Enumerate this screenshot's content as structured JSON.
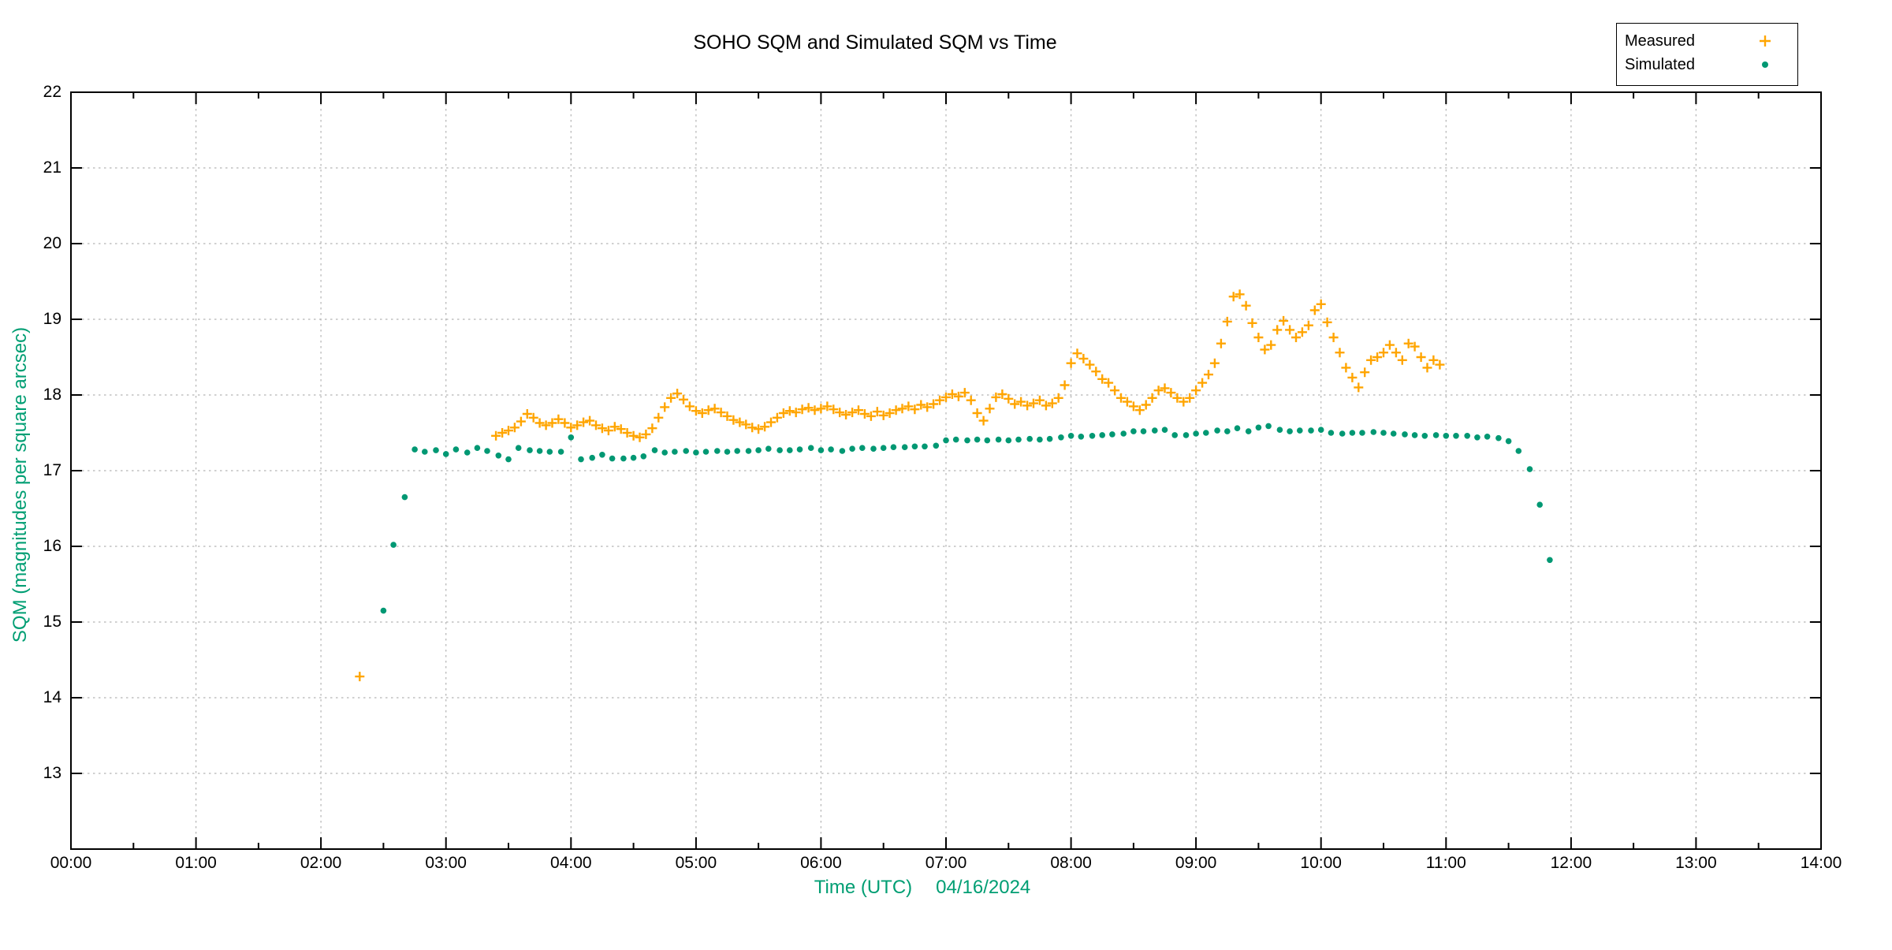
{
  "title": "SOHO SQM and Simulated SQM vs Time",
  "y_axis": {
    "label": "SQM (magnitudes per square arcsec)",
    "ticks": [
      {
        "v": 22,
        "label": "22"
      },
      {
        "v": 21,
        "label": "21"
      },
      {
        "v": 20,
        "label": "20"
      },
      {
        "v": 19,
        "label": "19"
      },
      {
        "v": 18,
        "label": "18"
      },
      {
        "v": 17,
        "label": "17"
      },
      {
        "v": 16,
        "label": "16"
      },
      {
        "v": 15,
        "label": "15"
      },
      {
        "v": 14,
        "label": "14"
      },
      {
        "v": 13,
        "label": "13"
      }
    ]
  },
  "x_axis": {
    "label": "Time (UTC)",
    "date": "04/16/2024",
    "ticks": [
      {
        "h": 0,
        "label": "00:00"
      },
      {
        "h": 1,
        "label": "01:00"
      },
      {
        "h": 2,
        "label": "02:00"
      },
      {
        "h": 3,
        "label": "03:00"
      },
      {
        "h": 4,
        "label": "04:00"
      },
      {
        "h": 5,
        "label": "05:00"
      },
      {
        "h": 6,
        "label": "06:00"
      },
      {
        "h": 7,
        "label": "07:00"
      },
      {
        "h": 8,
        "label": "08:00"
      },
      {
        "h": 9,
        "label": "09:00"
      },
      {
        "h": 10,
        "label": "10:00"
      },
      {
        "h": 11,
        "label": "11:00"
      },
      {
        "h": 12,
        "label": "12:00"
      },
      {
        "h": 13,
        "label": "13:00"
      },
      {
        "h": 14,
        "label": "14:00"
      }
    ]
  },
  "legend": {
    "items": [
      {
        "label": "Measured",
        "marker": "plus",
        "color": "#FFA500"
      },
      {
        "label": "Simulated",
        "marker": "dot",
        "color": "#009873"
      }
    ]
  },
  "colors": {
    "grid": "#b3b3b3",
    "axis_text": "#009E73",
    "border": "#000000",
    "measured": "#FFA500",
    "simulated": "#009873"
  },
  "chart_data": {
    "type": "scatter",
    "title": "SOHO SQM and Simulated SQM vs Time",
    "xlabel": "Time (UTC)  04/16/2024",
    "ylabel": "SQM (magnitudes per square arcsec)",
    "x_unit": "hours_UTC",
    "xlim": [
      0,
      14
    ],
    "ylim": [
      12,
      22
    ],
    "grid": true,
    "legend_position": "top-right",
    "series": [
      {
        "name": "Measured",
        "marker": "plus",
        "color": "#FFA500",
        "points": [
          [
            2.31,
            14.28
          ],
          [
            3.4,
            17.46
          ],
          [
            3.45,
            17.5
          ],
          [
            3.5,
            17.53
          ],
          [
            3.55,
            17.57
          ],
          [
            3.6,
            17.65
          ],
          [
            3.65,
            17.75
          ],
          [
            3.7,
            17.7
          ],
          [
            3.75,
            17.63
          ],
          [
            3.8,
            17.6
          ],
          [
            3.85,
            17.63
          ],
          [
            3.9,
            17.68
          ],
          [
            3.95,
            17.63
          ],
          [
            4.0,
            17.57
          ],
          [
            4.05,
            17.6
          ],
          [
            4.1,
            17.64
          ],
          [
            4.15,
            17.66
          ],
          [
            4.2,
            17.6
          ],
          [
            4.25,
            17.56
          ],
          [
            4.3,
            17.53
          ],
          [
            4.35,
            17.58
          ],
          [
            4.4,
            17.55
          ],
          [
            4.45,
            17.5
          ],
          [
            4.5,
            17.46
          ],
          [
            4.55,
            17.44
          ],
          [
            4.6,
            17.48
          ],
          [
            4.65,
            17.56
          ],
          [
            4.7,
            17.7
          ],
          [
            4.75,
            17.84
          ],
          [
            4.8,
            17.96
          ],
          [
            4.85,
            18.02
          ],
          [
            4.9,
            17.94
          ],
          [
            4.95,
            17.85
          ],
          [
            5.0,
            17.79
          ],
          [
            5.05,
            17.76
          ],
          [
            5.1,
            17.8
          ],
          [
            5.15,
            17.82
          ],
          [
            5.2,
            17.77
          ],
          [
            5.25,
            17.72
          ],
          [
            5.3,
            17.67
          ],
          [
            5.35,
            17.64
          ],
          [
            5.4,
            17.61
          ],
          [
            5.45,
            17.57
          ],
          [
            5.5,
            17.55
          ],
          [
            5.55,
            17.58
          ],
          [
            5.6,
            17.64
          ],
          [
            5.65,
            17.7
          ],
          [
            5.7,
            17.76
          ],
          [
            5.75,
            17.79
          ],
          [
            5.8,
            17.77
          ],
          [
            5.85,
            17.81
          ],
          [
            5.9,
            17.83
          ],
          [
            5.95,
            17.8
          ],
          [
            6.0,
            17.82
          ],
          [
            6.05,
            17.85
          ],
          [
            6.1,
            17.81
          ],
          [
            6.15,
            17.77
          ],
          [
            6.2,
            17.74
          ],
          [
            6.25,
            17.77
          ],
          [
            6.3,
            17.8
          ],
          [
            6.35,
            17.75
          ],
          [
            6.4,
            17.72
          ],
          [
            6.45,
            17.78
          ],
          [
            6.5,
            17.73
          ],
          [
            6.55,
            17.76
          ],
          [
            6.6,
            17.8
          ],
          [
            6.65,
            17.82
          ],
          [
            6.7,
            17.85
          ],
          [
            6.75,
            17.81
          ],
          [
            6.8,
            17.87
          ],
          [
            6.85,
            17.84
          ],
          [
            6.9,
            17.88
          ],
          [
            6.95,
            17.93
          ],
          [
            7.0,
            17.97
          ],
          [
            7.05,
            18.01
          ],
          [
            7.1,
            17.98
          ],
          [
            7.15,
            18.03
          ],
          [
            7.2,
            17.93
          ],
          [
            7.25,
            17.76
          ],
          [
            7.3,
            17.66
          ],
          [
            7.35,
            17.82
          ],
          [
            7.4,
            17.97
          ],
          [
            7.45,
            18.01
          ],
          [
            7.5,
            17.95
          ],
          [
            7.55,
            17.88
          ],
          [
            7.6,
            17.91
          ],
          [
            7.65,
            17.86
          ],
          [
            7.7,
            17.89
          ],
          [
            7.75,
            17.93
          ],
          [
            7.8,
            17.86
          ],
          [
            7.85,
            17.89
          ],
          [
            7.9,
            17.96
          ],
          [
            7.95,
            18.13
          ],
          [
            8.0,
            18.42
          ],
          [
            8.05,
            18.55
          ],
          [
            8.1,
            18.48
          ],
          [
            8.15,
            18.4
          ],
          [
            8.2,
            18.31
          ],
          [
            8.25,
            18.21
          ],
          [
            8.3,
            18.16
          ],
          [
            8.35,
            18.06
          ],
          [
            8.4,
            17.96
          ],
          [
            8.45,
            17.91
          ],
          [
            8.5,
            17.85
          ],
          [
            8.55,
            17.8
          ],
          [
            8.6,
            17.87
          ],
          [
            8.65,
            17.96
          ],
          [
            8.7,
            18.06
          ],
          [
            8.75,
            18.09
          ],
          [
            8.8,
            18.03
          ],
          [
            8.85,
            17.96
          ],
          [
            8.9,
            17.91
          ],
          [
            8.95,
            17.96
          ],
          [
            9.0,
            18.06
          ],
          [
            9.05,
            18.16
          ],
          [
            9.1,
            18.27
          ],
          [
            9.15,
            18.42
          ],
          [
            9.2,
            18.68
          ],
          [
            9.25,
            18.97
          ],
          [
            9.3,
            19.3
          ],
          [
            9.35,
            19.33
          ],
          [
            9.4,
            19.18
          ],
          [
            9.45,
            18.95
          ],
          [
            9.5,
            18.76
          ],
          [
            9.55,
            18.6
          ],
          [
            9.6,
            18.66
          ],
          [
            9.65,
            18.86
          ],
          [
            9.7,
            18.98
          ],
          [
            9.75,
            18.86
          ],
          [
            9.8,
            18.76
          ],
          [
            9.85,
            18.83
          ],
          [
            9.9,
            18.92
          ],
          [
            9.95,
            19.12
          ],
          [
            10.0,
            19.2
          ],
          [
            10.05,
            18.96
          ],
          [
            10.1,
            18.76
          ],
          [
            10.15,
            18.56
          ],
          [
            10.2,
            18.36
          ],
          [
            10.25,
            18.23
          ],
          [
            10.3,
            18.1
          ],
          [
            10.35,
            18.3
          ],
          [
            10.4,
            18.46
          ],
          [
            10.45,
            18.5
          ],
          [
            10.5,
            18.56
          ],
          [
            10.55,
            18.66
          ],
          [
            10.6,
            18.56
          ],
          [
            10.65,
            18.46
          ],
          [
            10.7,
            18.68
          ],
          [
            10.75,
            18.64
          ],
          [
            10.8,
            18.5
          ],
          [
            10.85,
            18.36
          ],
          [
            10.9,
            18.46
          ],
          [
            10.95,
            18.4
          ]
        ]
      },
      {
        "name": "Simulated",
        "marker": "dot",
        "color": "#009873",
        "points": [
          [
            2.5,
            15.15
          ],
          [
            2.58,
            16.02
          ],
          [
            2.67,
            16.65
          ],
          [
            2.75,
            17.28
          ],
          [
            2.83,
            17.25
          ],
          [
            2.92,
            17.27
          ],
          [
            3.0,
            17.22
          ],
          [
            3.08,
            17.28
          ],
          [
            3.17,
            17.24
          ],
          [
            3.25,
            17.3
          ],
          [
            3.33,
            17.26
          ],
          [
            3.42,
            17.2
          ],
          [
            3.5,
            17.15
          ],
          [
            3.58,
            17.3
          ],
          [
            3.67,
            17.27
          ],
          [
            3.75,
            17.26
          ],
          [
            3.83,
            17.25
          ],
          [
            3.92,
            17.25
          ],
          [
            4.0,
            17.44
          ],
          [
            4.08,
            17.15
          ],
          [
            4.17,
            17.17
          ],
          [
            4.25,
            17.21
          ],
          [
            4.33,
            17.16
          ],
          [
            4.42,
            17.16
          ],
          [
            4.5,
            17.17
          ],
          [
            4.58,
            17.19
          ],
          [
            4.67,
            17.27
          ],
          [
            4.75,
            17.24
          ],
          [
            4.83,
            17.25
          ],
          [
            4.92,
            17.26
          ],
          [
            5.0,
            17.24
          ],
          [
            5.08,
            17.25
          ],
          [
            5.17,
            17.26
          ],
          [
            5.25,
            17.25
          ],
          [
            5.33,
            17.26
          ],
          [
            5.42,
            17.26
          ],
          [
            5.5,
            17.27
          ],
          [
            5.58,
            17.29
          ],
          [
            5.67,
            17.27
          ],
          [
            5.75,
            17.27
          ],
          [
            5.83,
            17.28
          ],
          [
            5.92,
            17.3
          ],
          [
            6.0,
            17.27
          ],
          [
            6.08,
            17.28
          ],
          [
            6.17,
            17.26
          ],
          [
            6.25,
            17.29
          ],
          [
            6.33,
            17.3
          ],
          [
            6.42,
            17.29
          ],
          [
            6.5,
            17.3
          ],
          [
            6.58,
            17.31
          ],
          [
            6.67,
            17.31
          ],
          [
            6.75,
            17.32
          ],
          [
            6.83,
            17.32
          ],
          [
            6.92,
            17.33
          ],
          [
            7.0,
            17.4
          ],
          [
            7.08,
            17.41
          ],
          [
            7.17,
            17.4
          ],
          [
            7.25,
            17.41
          ],
          [
            7.33,
            17.4
          ],
          [
            7.42,
            17.41
          ],
          [
            7.5,
            17.4
          ],
          [
            7.58,
            17.41
          ],
          [
            7.67,
            17.42
          ],
          [
            7.75,
            17.41
          ],
          [
            7.83,
            17.42
          ],
          [
            7.92,
            17.44
          ],
          [
            8.0,
            17.46
          ],
          [
            8.08,
            17.45
          ],
          [
            8.17,
            17.46
          ],
          [
            8.25,
            17.47
          ],
          [
            8.33,
            17.48
          ],
          [
            8.42,
            17.49
          ],
          [
            8.5,
            17.52
          ],
          [
            8.58,
            17.52
          ],
          [
            8.67,
            17.53
          ],
          [
            8.75,
            17.54
          ],
          [
            8.83,
            17.47
          ],
          [
            8.92,
            17.47
          ],
          [
            9.0,
            17.49
          ],
          [
            9.08,
            17.5
          ],
          [
            9.17,
            17.53
          ],
          [
            9.25,
            17.52
          ],
          [
            9.33,
            17.56
          ],
          [
            9.42,
            17.52
          ],
          [
            9.5,
            17.57
          ],
          [
            9.58,
            17.59
          ],
          [
            9.67,
            17.54
          ],
          [
            9.75,
            17.52
          ],
          [
            9.83,
            17.53
          ],
          [
            9.92,
            17.53
          ],
          [
            10.0,
            17.54
          ],
          [
            10.08,
            17.5
          ],
          [
            10.17,
            17.49
          ],
          [
            10.25,
            17.5
          ],
          [
            10.33,
            17.5
          ],
          [
            10.42,
            17.51
          ],
          [
            10.5,
            17.5
          ],
          [
            10.58,
            17.49
          ],
          [
            10.67,
            17.48
          ],
          [
            10.75,
            17.47
          ],
          [
            10.83,
            17.46
          ],
          [
            10.92,
            17.47
          ],
          [
            11.0,
            17.46
          ],
          [
            11.08,
            17.46
          ],
          [
            11.17,
            17.46
          ],
          [
            11.25,
            17.44
          ],
          [
            11.33,
            17.45
          ],
          [
            11.42,
            17.43
          ],
          [
            11.5,
            17.39
          ],
          [
            11.58,
            17.26
          ],
          [
            11.67,
            17.02
          ],
          [
            11.75,
            16.55
          ],
          [
            11.83,
            15.82
          ]
        ]
      }
    ]
  }
}
